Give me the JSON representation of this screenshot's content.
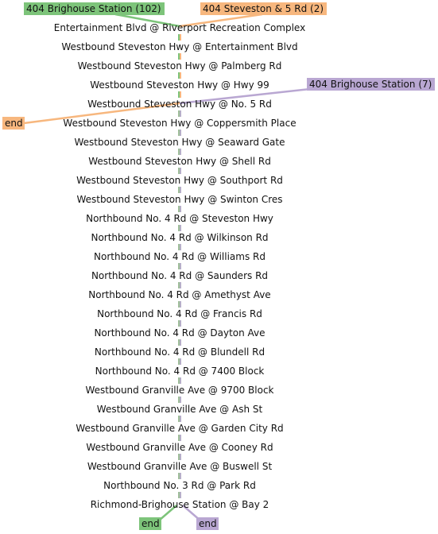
{
  "routes": [
    {
      "label": "404 Brighouse Station (102)",
      "color": "#7dc47a"
    },
    {
      "label": "404 Steveston & 5 Rd (2)",
      "color": "#f7b77e"
    },
    {
      "label": "404 Brighouse Station (7)",
      "color": "#b9a7d2"
    }
  ],
  "end_labels": {
    "left": "end",
    "bottom_green": "end",
    "bottom_purple": "end"
  },
  "stops": [
    "Entertainment Blvd @ Riverport Recreation Complex",
    "Westbound Steveston Hwy @ Entertainment Blvd",
    "Westbound Steveston Hwy @ Palmberg Rd",
    "Westbound Steveston Hwy @ Hwy 99",
    "Westbound Steveston Hwy @ No. 5 Rd",
    "Westbound Steveston Hwy @ Coppersmith Place",
    "Westbound Steveston Hwy @ Seaward Gate",
    "Westbound Steveston Hwy @ Shell Rd",
    "Westbound Steveston Hwy @ Southport Rd",
    "Westbound Steveston Hwy @ Swinton Cres",
    "Northbound No. 4 Rd @ Steveston Hwy",
    "Northbound No. 4 Rd @ Wilkinson Rd",
    "Northbound No. 4 Rd @ Williams Rd",
    "Northbound No. 4 Rd @ Saunders Rd",
    "Northbound No. 4 Rd @ Amethyst Ave",
    "Northbound No. 4 Rd @ Francis Rd",
    "Northbound No. 4 Rd @ Dayton Ave",
    "Northbound No. 4 Rd @ Blundell Rd",
    "Northbound No. 4 Rd @ 7400 Block",
    "Westbound Granville Ave @ 9700 Block",
    "Westbound Granville Ave @ Ash St",
    "Westbound Granville Ave @ Garden City Rd",
    "Westbound Granville Ave @ Cooney Rd",
    "Westbound Granville Ave @ Buswell St",
    "Northbound No. 3 Rd @ Park Rd",
    "Richmond-Brighouse Station @ Bay 2"
  ]
}
